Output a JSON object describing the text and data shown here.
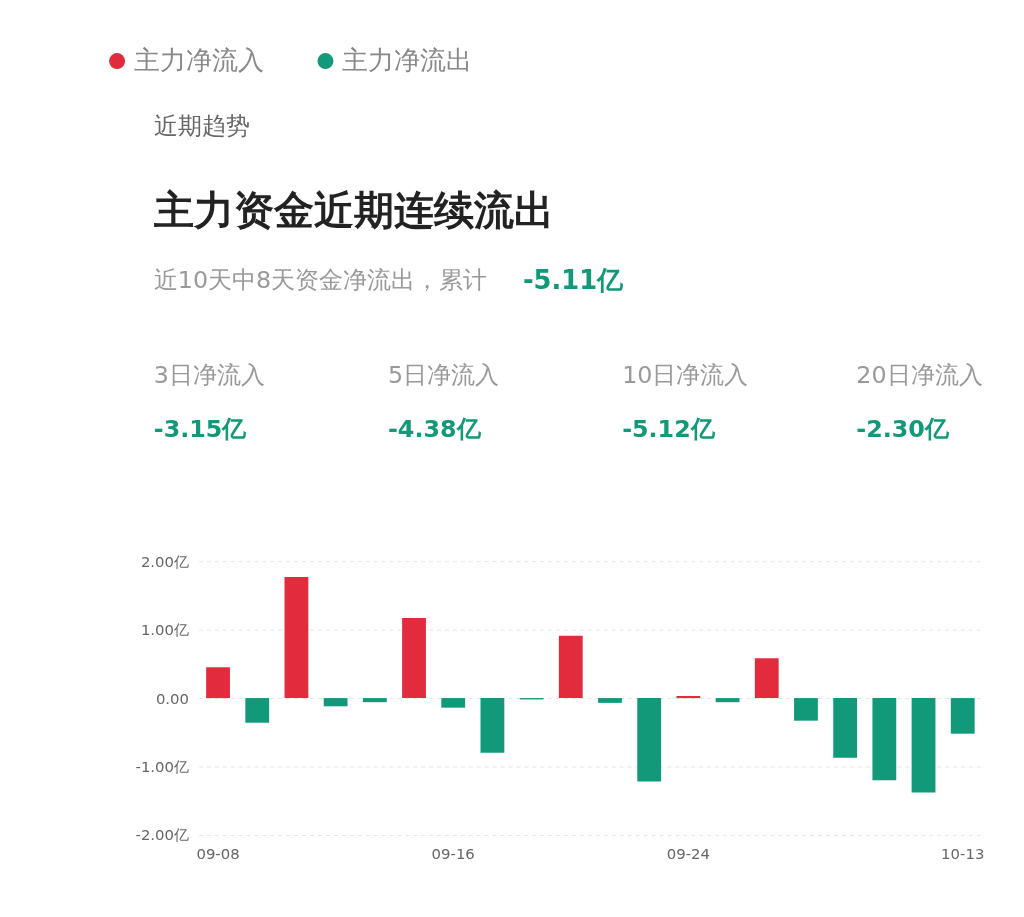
{
  "chart_data": {
    "type": "bar",
    "title": "主力资金近期连续流出",
    "subtitle": "近10天中8天资金净流出，累计 -5.11亿",
    "annotations": [
      "近期趋势",
      "3日净流入",
      "-3.15亿",
      "5日净流入",
      "-4.38亿",
      "10日净流入",
      "-5.12亿",
      "20日净流入",
      "-2.30亿"
    ],
    "categories": [
      "09-08",
      null,
      null,
      null,
      null,
      null,
      "09-16",
      null,
      null,
      null,
      null,
      null,
      "09-24",
      null,
      null,
      null,
      null,
      null,
      null,
      "10-13"
    ],
    "series": [
      {
        "name": "主力净流入",
        "color": "#e22b3c",
        "values": [
          0.45,
          null,
          1.77,
          null,
          null,
          1.17,
          null,
          null,
          null,
          0.91,
          null,
          null,
          0.03,
          null,
          0.58,
          null,
          null,
          null,
          null,
          null
        ]
      },
      {
        "name": "主力净流出",
        "color": "#11997a",
        "values": [
          null,
          -0.36,
          null,
          -0.12,
          -0.06,
          null,
          -0.14,
          -0.8,
          -0.02,
          null,
          -0.07,
          -1.22,
          null,
          -0.06,
          null,
          -0.33,
          -0.87,
          -1.2,
          -1.38,
          -0.52
        ]
      }
    ],
    "ylim": [
      -2,
      2
    ],
    "yticks": [
      {
        "value": 2,
        "label": "2.00亿"
      },
      {
        "value": 1,
        "label": "1.00亿"
      },
      {
        "value": 0,
        "label": "0.00"
      },
      {
        "value": -1,
        "label": "-1.00亿"
      },
      {
        "value": -2,
        "label": "-2.00亿"
      }
    ],
    "grid": "y",
    "legend": "top"
  }
}
